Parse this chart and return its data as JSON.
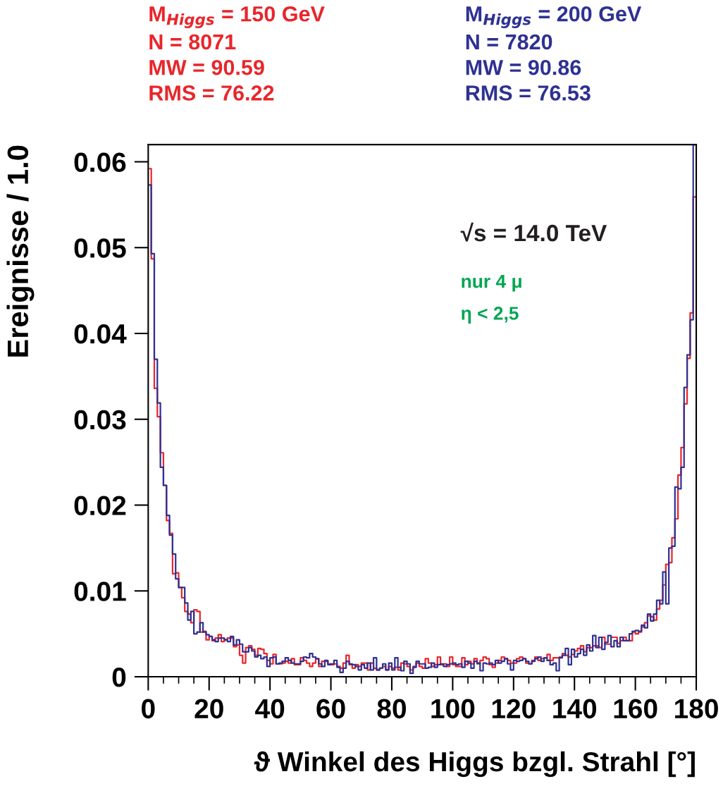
{
  "chart_data": {
    "type": "step",
    "xlabel": "ϑ Winkel des Higgs bzgl. Strahl [°]",
    "ylabel": "Ereignisse / 1.0",
    "x": [
      0.5,
      1.5,
      2.5,
      3.5,
      4.5,
      5.5,
      6.5,
      7.5,
      8.5,
      9.5,
      10.5,
      11.5,
      12.5,
      13.5,
      14.5,
      15.5,
      16.5,
      17.5,
      18.5,
      19.5,
      20.5,
      21.5,
      22.5,
      23.5,
      24.5,
      25.5,
      26.5,
      27.5,
      28.5,
      29.5,
      30.5,
      31.5,
      32.5,
      33.5,
      34.5,
      35.5,
      36.5,
      37.5,
      38.5,
      39.5,
      40.5,
      41.5,
      42.5,
      43.5,
      44.5,
      45.5,
      46.5,
      47.5,
      48.5,
      49.5,
      50.5,
      51.5,
      52.5,
      53.5,
      54.5,
      55.5,
      56.5,
      57.5,
      58.5,
      59.5,
      60.5,
      61.5,
      62.5,
      63.5,
      64.5,
      65.5,
      66.5,
      67.5,
      68.5,
      69.5,
      70.5,
      71.5,
      72.5,
      73.5,
      74.5,
      75.5,
      76.5,
      77.5,
      78.5,
      79.5,
      80.5,
      81.5,
      82.5,
      83.5,
      84.5,
      85.5,
      86.5,
      87.5,
      88.5,
      89.5,
      90.5,
      91.5,
      92.5,
      93.5,
      94.5,
      95.5,
      96.5,
      97.5,
      98.5,
      99.5,
      100.5,
      101.5,
      102.5,
      103.5,
      104.5,
      105.5,
      106.5,
      107.5,
      108.5,
      109.5,
      110.5,
      111.5,
      112.5,
      113.5,
      114.5,
      115.5,
      116.5,
      117.5,
      118.5,
      119.5,
      120.5,
      121.5,
      122.5,
      123.5,
      124.5,
      125.5,
      126.5,
      127.5,
      128.5,
      129.5,
      130.5,
      131.5,
      132.5,
      133.5,
      134.5,
      135.5,
      136.5,
      137.5,
      138.5,
      139.5,
      140.5,
      141.5,
      142.5,
      143.5,
      144.5,
      145.5,
      146.5,
      147.5,
      148.5,
      149.5,
      150.5,
      151.5,
      152.5,
      153.5,
      154.5,
      155.5,
      156.5,
      157.5,
      158.5,
      159.5,
      160.5,
      161.5,
      162.5,
      163.5,
      164.5,
      165.5,
      166.5,
      167.5,
      168.5,
      169.5,
      170.5,
      171.5,
      172.5,
      173.5,
      174.5,
      175.5,
      176.5,
      177.5,
      178.5,
      179.5
    ],
    "series": [
      {
        "name": "M$_{Higgs}$ = 150 GeV\nN = 8071\nMW = 90.59\nRMS = 76.22",
        "color": "#e8262b",
        "values": [
          0.0592,
          0.0487,
          0.0336,
          0.0303,
          0.0261,
          0.0223,
          0.0182,
          0.0167,
          0.012,
          0.0121,
          0.0104,
          0.0092,
          0.0076,
          0.0073,
          0.0063,
          0.0078,
          0.0076,
          0.0052,
          0.0053,
          0.0043,
          0.0047,
          0.0042,
          0.0045,
          0.0049,
          0.0041,
          0.0043,
          0.0045,
          0.0045,
          0.0035,
          0.0037,
          0.0025,
          0.0016,
          0.0034,
          0.0036,
          0.0032,
          0.0025,
          0.0033,
          0.0032,
          0.0027,
          0.0019,
          0.0015,
          0.0026,
          0.0015,
          0.0015,
          0.0016,
          0.0018,
          0.0016,
          0.0021,
          0.0014,
          0.0014,
          0.0022,
          0.0019,
          0.0016,
          0.0012,
          0.0016,
          0.0021,
          0.0012,
          0.0018,
          0.0018,
          0.0015,
          0.0014,
          0.0015,
          0.0012,
          0.001,
          0.0016,
          0.0025,
          0.0014,
          0.001,
          0.0014,
          0.0012,
          0.0016,
          0.0016,
          0.0008,
          0.0016,
          0.001,
          0.0008,
          0.001,
          0.0012,
          0.0008,
          0.0012,
          0.001,
          0.0011,
          0.0008,
          0.0016,
          0.0015,
          0.0012,
          0.0008,
          0.0012,
          0.0016,
          0.0012,
          0.001,
          0.0021,
          0.0016,
          0.0012,
          0.0014,
          0.0023,
          0.0014,
          0.0015,
          0.0012,
          0.0023,
          0.0014,
          0.0012,
          0.0012,
          0.0022,
          0.0014,
          0.0018,
          0.0015,
          0.0021,
          0.0015,
          0.0019,
          0.0023,
          0.0021,
          0.0014,
          0.0011,
          0.0016,
          0.0019,
          0.0023,
          0.0021,
          0.0019,
          0.0016,
          0.0016,
          0.0021,
          0.0023,
          0.0021,
          0.0016,
          0.0015,
          0.0019,
          0.0023,
          0.0019,
          0.0021,
          0.0022,
          0.0026,
          0.0019,
          0.0022,
          0.0022,
          0.0023,
          0.0027,
          0.0025,
          0.0023,
          0.0026,
          0.003,
          0.0033,
          0.0036,
          0.0029,
          0.0034,
          0.0034,
          0.0036,
          0.0036,
          0.0034,
          0.0046,
          0.0038,
          0.0038,
          0.0046,
          0.0046,
          0.0039,
          0.0042,
          0.0046,
          0.0042,
          0.0042,
          0.0052,
          0.005,
          0.0052,
          0.0058,
          0.0063,
          0.0071,
          0.007,
          0.0066,
          0.0079,
          0.0089,
          0.0107,
          0.0131,
          0.0133,
          0.0162,
          0.0184,
          0.0235,
          0.0267,
          0.0318,
          0.0371,
          0.0424,
          0.0559
        ]
      },
      {
        "name": "M$_{Higgs}$ = 200 GeV\nN = 7820\nMW = 90.86\nRMS = 76.53",
        "color": "#2e3192",
        "values": [
          0.0573,
          0.0493,
          0.037,
          0.0319,
          0.0244,
          0.0223,
          0.0188,
          0.0165,
          0.0143,
          0.0114,
          0.0104,
          0.0104,
          0.0086,
          0.0066,
          0.0076,
          0.005,
          0.0052,
          0.0063,
          0.0052,
          0.0049,
          0.0047,
          0.0043,
          0.0041,
          0.0045,
          0.0045,
          0.0043,
          0.0041,
          0.0047,
          0.0037,
          0.0043,
          0.0038,
          0.0029,
          0.0029,
          0.0034,
          0.003,
          0.0023,
          0.0025,
          0.0021,
          0.0023,
          0.0012,
          0.0022,
          0.0023,
          0.0015,
          0.0016,
          0.0018,
          0.0022,
          0.0019,
          0.0016,
          0.0015,
          0.0015,
          0.0018,
          0.0023,
          0.0022,
          0.0027,
          0.0023,
          0.0021,
          0.0015,
          0.0012,
          0.0019,
          0.0014,
          0.0015,
          0.0019,
          0.0011,
          0.0005,
          0.001,
          0.0018,
          0.0015,
          0.0014,
          0.0012,
          0.0008,
          0.0014,
          0.001,
          0.0016,
          0.0008,
          0.0022,
          0.0008,
          0.001,
          0.0015,
          0.0008,
          0.0016,
          0.0008,
          0.0022,
          0.0011,
          0.0007,
          0.0018,
          0.0015,
          0.0004,
          0.0011,
          0.0018,
          0.0015,
          0.0015,
          0.001,
          0.0011,
          0.0016,
          0.0011,
          0.0014,
          0.0015,
          0.0012,
          0.0014,
          0.0015,
          0.0016,
          0.0014,
          0.0015,
          0.0011,
          0.0018,
          0.0016,
          0.001,
          0.0018,
          0.0016,
          0.0007,
          0.0016,
          0.0015,
          0.0016,
          0.0014,
          0.0019,
          0.0016,
          0.0018,
          0.0021,
          0.0015,
          0.0008,
          0.0019,
          0.0018,
          0.0019,
          0.0021,
          0.0018,
          0.0015,
          0.0018,
          0.0021,
          0.0023,
          0.0018,
          0.0022,
          0.0019,
          0.0014,
          0.0016,
          0.0007,
          0.0022,
          0.0025,
          0.0033,
          0.0014,
          0.0032,
          0.0023,
          0.0027,
          0.0032,
          0.0025,
          0.0037,
          0.003,
          0.0048,
          0.0034,
          0.0046,
          0.0032,
          0.004,
          0.0048,
          0.0035,
          0.0042,
          0.0035,
          0.0046,
          0.0042,
          0.0042,
          0.005,
          0.0053,
          0.0054,
          0.0053,
          0.006,
          0.0057,
          0.0073,
          0.0065,
          0.0073,
          0.0089,
          0.0085,
          0.0122,
          0.0085,
          0.015,
          0.0152,
          0.0221,
          0.0219,
          0.0244,
          0.0337,
          0.0375,
          0.0416,
          0.062
        ]
      }
    ],
    "annotations": [
      "√s = 14.0 TeV",
      "nur 4 μ",
      "η < 2,5"
    ],
    "xlim": [
      0,
      180
    ],
    "xticks": [
      0,
      20,
      40,
      60,
      80,
      100,
      120,
      140,
      160,
      180
    ],
    "ylim": [
      0,
      0.062
    ],
    "yticks": [
      0,
      0.01,
      0.02,
      0.03,
      0.04,
      0.05,
      0.06
    ],
    "grid": false,
    "legend": false
  }
}
